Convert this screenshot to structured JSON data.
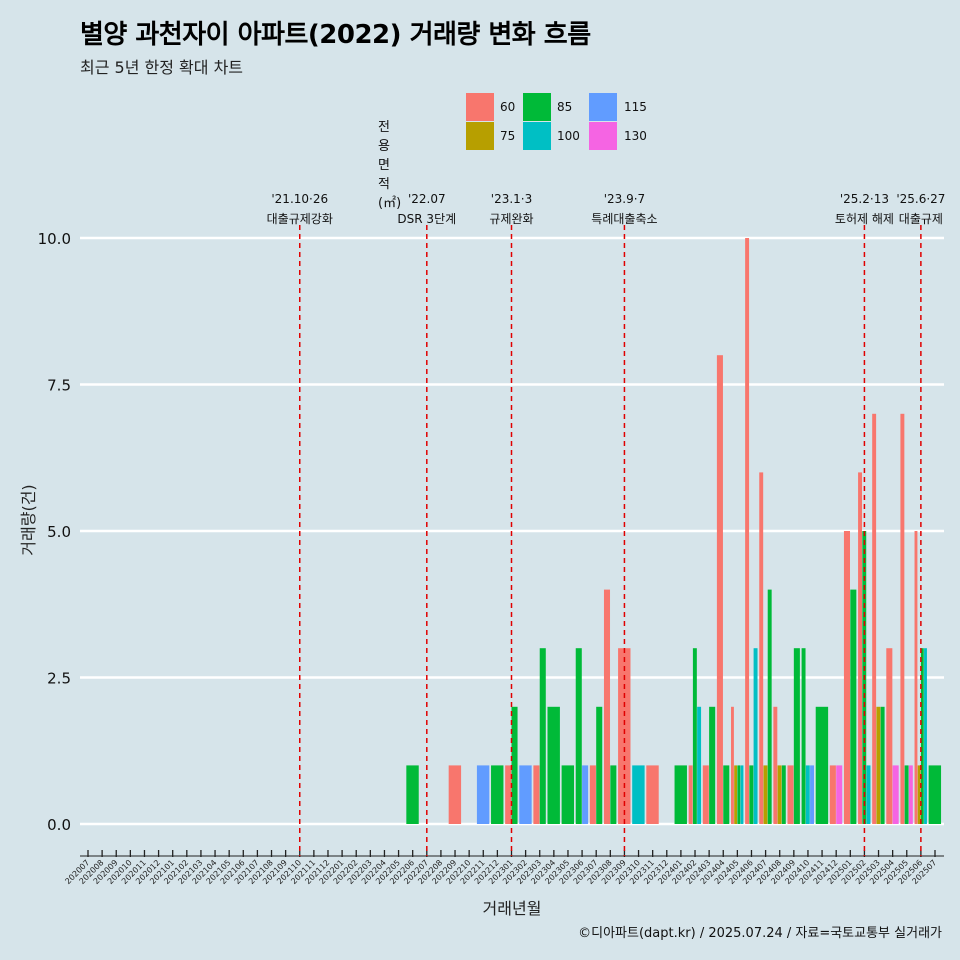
{
  "chart_data": {
    "type": "bar",
    "title": "별양 과천자이 아파트(2022) 거래량 변화 흐름",
    "subtitle": "최근 5년 한정 확대 차트",
    "xlabel": "거래년월",
    "ylabel": "거래량(건)",
    "ylim": [
      0,
      10
    ],
    "yticks": [
      "0.0",
      "2.5",
      "5.0",
      "7.5",
      "10.0"
    ],
    "ytick_values": [
      0,
      2.5,
      5,
      7.5,
      10
    ],
    "grid": true,
    "legend_position": "top",
    "legend_title": "전용면적(㎡)",
    "categories": [
      "202007",
      "202008",
      "202009",
      "202010",
      "202011",
      "202012",
      "202101",
      "202102",
      "202103",
      "202104",
      "202105",
      "202106",
      "202107",
      "202108",
      "202109",
      "202110",
      "202111",
      "202112",
      "202201",
      "202202",
      "202203",
      "202204",
      "202205",
      "202206",
      "202207",
      "202208",
      "202209",
      "202210",
      "202211",
      "202212",
      "202301",
      "202302",
      "202303",
      "202304",
      "202305",
      "202306",
      "202307",
      "202308",
      "202309",
      "202310",
      "202311",
      "202312",
      "202401",
      "202402",
      "202403",
      "202404",
      "202405",
      "202406",
      "202407",
      "202408",
      "202409",
      "202410",
      "202411",
      "202412",
      "202501",
      "202502",
      "202503",
      "202504",
      "202505",
      "202506",
      "202507"
    ],
    "series": [
      {
        "name": "60",
        "color": "#f8766d",
        "values": [
          0,
          0,
          0,
          0,
          0,
          0,
          0,
          0,
          0,
          0,
          0,
          0,
          0,
          0,
          0,
          0,
          0,
          0,
          0,
          0,
          0,
          0,
          0,
          0,
          0,
          0,
          1,
          0,
          0,
          0,
          1,
          0,
          1,
          0,
          0,
          0,
          1,
          4,
          3,
          0,
          1,
          0,
          0,
          1,
          1,
          8,
          2,
          10,
          6,
          2,
          1,
          0,
          0,
          1,
          5,
          6,
          7,
          3,
          7,
          5,
          0
        ]
      },
      {
        "name": "75",
        "color": "#b79f00",
        "values": [
          0,
          0,
          0,
          0,
          0,
          0,
          0,
          0,
          0,
          0,
          0,
          0,
          0,
          0,
          0,
          0,
          0,
          0,
          0,
          0,
          0,
          0,
          0,
          0,
          0,
          0,
          0,
          0,
          0,
          0,
          0,
          0,
          0,
          0,
          0,
          0,
          0,
          0,
          0,
          0,
          0,
          0,
          0,
          0,
          0,
          0,
          1,
          0,
          1,
          1,
          0,
          0,
          0,
          0,
          0,
          0,
          2,
          0,
          0,
          1,
          0
        ]
      },
      {
        "name": "85",
        "color": "#00ba38",
        "values": [
          0,
          0,
          0,
          0,
          0,
          0,
          0,
          0,
          0,
          0,
          0,
          0,
          0,
          0,
          0,
          0,
          0,
          0,
          0,
          0,
          0,
          0,
          0,
          1,
          0,
          0,
          0,
          0,
          0,
          1,
          2,
          0,
          3,
          2,
          1,
          3,
          2,
          1,
          0,
          0,
          0,
          0,
          1,
          3,
          2,
          1,
          1,
          1,
          4,
          1,
          3,
          3,
          2,
          0,
          4,
          5,
          2,
          0,
          1,
          3,
          1
        ]
      },
      {
        "name": "100",
        "color": "#00bfc4",
        "values": [
          0,
          0,
          0,
          0,
          0,
          0,
          0,
          0,
          0,
          0,
          0,
          0,
          0,
          0,
          0,
          0,
          0,
          0,
          0,
          0,
          0,
          0,
          0,
          0,
          0,
          0,
          0,
          0,
          0,
          0,
          0,
          0,
          0,
          0,
          0,
          0,
          0,
          0,
          0,
          1,
          0,
          0,
          0,
          2,
          0,
          0,
          1,
          3,
          0,
          0,
          0,
          1,
          0,
          0,
          0,
          1,
          0,
          0,
          0,
          3,
          0
        ]
      },
      {
        "name": "115",
        "color": "#619cff",
        "values": [
          0,
          0,
          0,
          0,
          0,
          0,
          0,
          0,
          0,
          0,
          0,
          0,
          0,
          0,
          0,
          0,
          0,
          0,
          0,
          0,
          0,
          0,
          0,
          0,
          0,
          0,
          0,
          0,
          1,
          0,
          0,
          1,
          0,
          0,
          0,
          1,
          0,
          0,
          0,
          0,
          0,
          0,
          0,
          0,
          0,
          0,
          0,
          0,
          0,
          0,
          0,
          1,
          0,
          0,
          0,
          0,
          0,
          0,
          0,
          0,
          0
        ]
      },
      {
        "name": "130",
        "color": "#f564e3",
        "values": [
          0,
          0,
          0,
          0,
          0,
          0,
          0,
          0,
          0,
          0,
          0,
          0,
          0,
          0,
          0,
          0,
          0,
          0,
          0,
          0,
          0,
          0,
          0,
          0,
          0,
          0,
          0,
          0,
          0,
          0,
          0,
          0,
          0,
          0,
          0,
          0,
          0,
          0,
          0,
          0,
          0,
          0,
          0,
          0,
          0,
          0,
          0,
          0,
          0,
          0,
          0,
          0,
          0,
          1,
          0,
          0,
          0,
          1,
          1,
          0,
          0
        ]
      }
    ],
    "annotations": [
      {
        "date": "'21.10·26",
        "text": "대출규제강화",
        "category": "202110"
      },
      {
        "date": "'22.07",
        "text": "DSR 3단계",
        "category": "202207"
      },
      {
        "date": "'23.1·3",
        "text": "규제완화",
        "category": "202301"
      },
      {
        "date": "'23.9·7",
        "text": "특례대출축소",
        "category": "202309"
      },
      {
        "date": "'25.2·13",
        "text": "토허제 해제",
        "category": "202502"
      },
      {
        "date": "'25.6·27",
        "text": "대출규제",
        "category": "202506"
      }
    ]
  },
  "footer": "©디아파트(dapt.kr) / 2025.07.24 / 자료=국토교통부 실거래가"
}
